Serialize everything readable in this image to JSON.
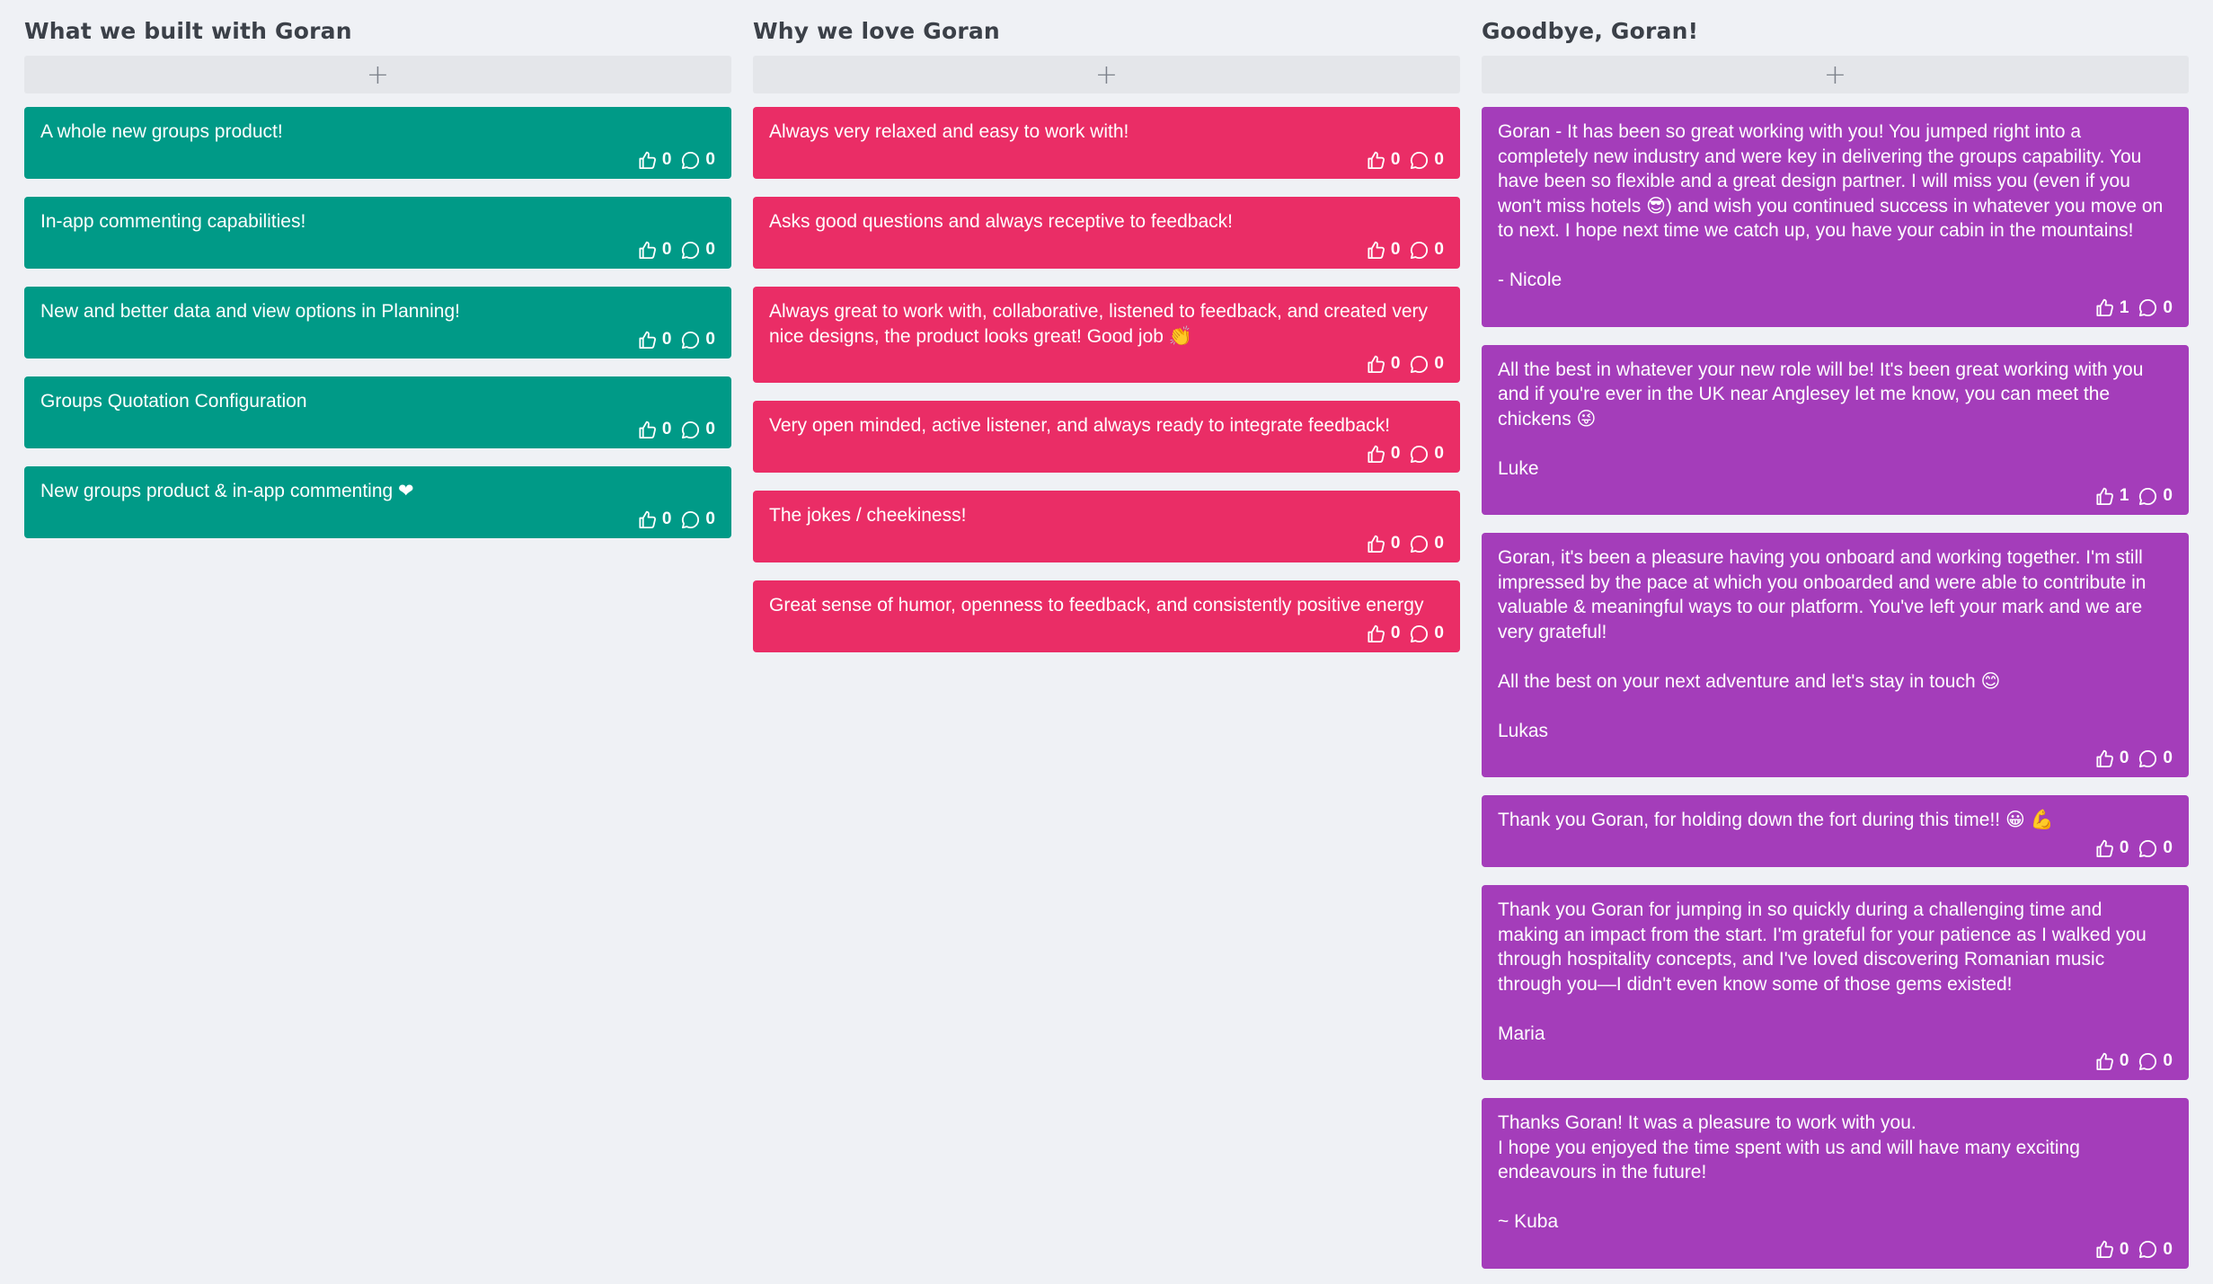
{
  "colors": {
    "background": "#eff1f5",
    "column_1_card": "#009a87",
    "column_2_card": "#ea2d66",
    "column_3_card": "#a43dba"
  },
  "columns": [
    {
      "title": "What we built with Goran",
      "add_label": "+",
      "color": "#009a87",
      "cards": [
        {
          "text": "A whole new groups product!",
          "likes": "0",
          "comments": "0"
        },
        {
          "text": "In-app commenting capabilities!",
          "likes": "0",
          "comments": "0"
        },
        {
          "text": "New and better data and view options in Planning!",
          "likes": "0",
          "comments": "0"
        },
        {
          "text": "Groups Quotation Configuration",
          "likes": "0",
          "comments": "0"
        },
        {
          "text": "New groups product & in-app commenting ❤",
          "likes": "0",
          "comments": "0"
        }
      ]
    },
    {
      "title": "Why we love Goran",
      "add_label": "+",
      "color": "#ea2d66",
      "cards": [
        {
          "text": "Always very relaxed and easy to work with!",
          "likes": "0",
          "comments": "0"
        },
        {
          "text": "Asks good questions and always receptive to feedback!",
          "likes": "0",
          "comments": "0"
        },
        {
          "text": "Always great to work with, collaborative, listened to feedback, and created very nice designs, the product looks great! Good job 👏",
          "likes": "0",
          "comments": "0"
        },
        {
          "text": "Very open minded, active listener, and always ready to integrate feedback!",
          "likes": "0",
          "comments": "0"
        },
        {
          "text": "The jokes / cheekiness!",
          "likes": "0",
          "comments": "0"
        },
        {
          "text": "Great sense of humor, openness to feedback, and consistently positive energy",
          "likes": "0",
          "comments": "0"
        }
      ]
    },
    {
      "title": "Goodbye, Goran!",
      "add_label": "+",
      "color": "#a43dba",
      "cards": [
        {
          "text": "Goran - It has been so great working with you! You jumped right into a completely new industry and were key in delivering the groups capability. You have been so flexible and a great design partner. I will miss you (even if you won't miss hotels 😎) and wish you continued success in whatever you move on to next. I hope next time we catch up, you have your cabin in the mountains!\n\n- Nicole",
          "likes": "1",
          "comments": "0"
        },
        {
          "text": "All the best in whatever your new role will be! It's been great working with you and if you're ever in the UK near Anglesey let me know, you can meet the chickens 😜\n\nLuke",
          "likes": "1",
          "comments": "0"
        },
        {
          "text": "Goran, it's been a pleasure having you onboard and working together. I'm still impressed by the pace at which you onboarded and were able to contribute in valuable & meaningful ways to our platform. You've left your mark and we are very grateful!\n\nAll the best on your next adventure and let's stay in touch 😊\n\nLukas",
          "likes": "0",
          "comments": "0"
        },
        {
          "text": "Thank you Goran, for holding down the fort during this time!! 😀 💪",
          "likes": "0",
          "comments": "0"
        },
        {
          "text": "Thank you Goran for jumping in so quickly during a challenging time and making an impact from the start. I'm grateful for your patience as I walked you through hospitality concepts, and I've loved discovering Romanian music through you—I didn't even know some of those gems existed!\n\nMaria",
          "likes": "0",
          "comments": "0"
        },
        {
          "text": "Thanks Goran! It was a pleasure to work with you.\nI hope you enjoyed the time spent with us and will have many exciting endeavours in the future!\n\n~ Kuba",
          "likes": "0",
          "comments": "0"
        }
      ]
    }
  ]
}
